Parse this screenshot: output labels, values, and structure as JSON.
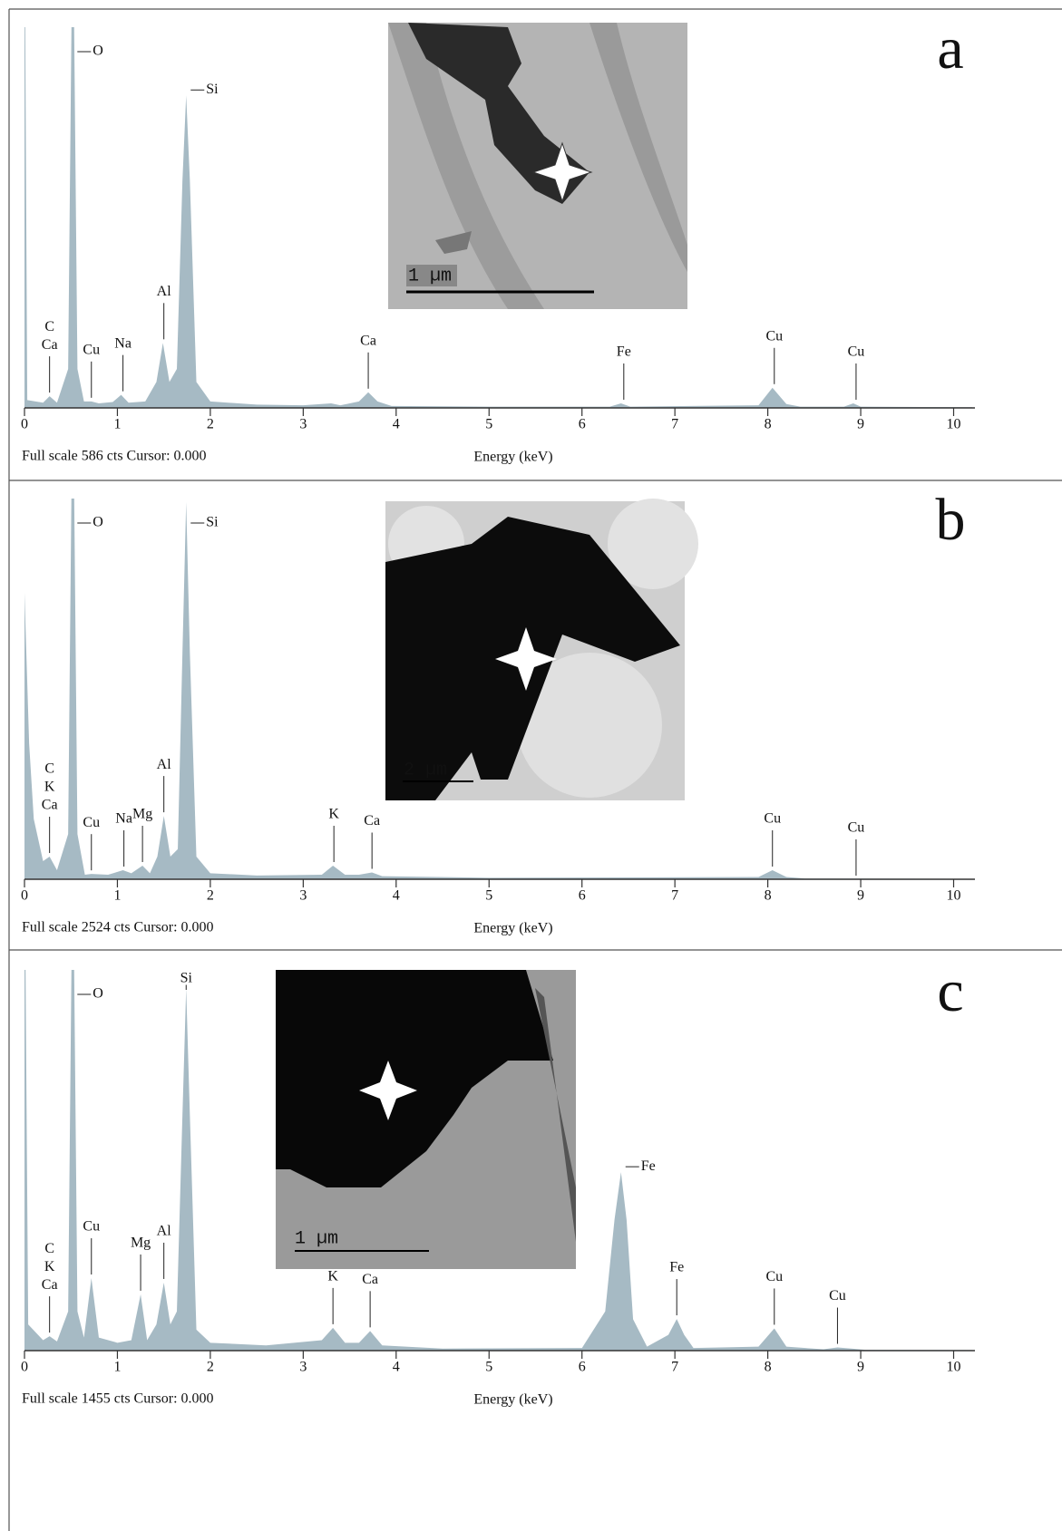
{
  "chart_data": [
    {
      "type": "spectrum",
      "panel_label": "a",
      "footer": "Full scale 586 cts Cursor: 0.000",
      "x_label": "Energy (keV)",
      "xlim": [
        0,
        10.2
      ],
      "ylim": [
        0,
        586
      ],
      "xticks": [
        0,
        1,
        2,
        3,
        4,
        5,
        6,
        7,
        8,
        9,
        10
      ],
      "color": "#a6bac4",
      "inset_scale": "1 µm",
      "x": [
        0,
        0.03,
        0.2,
        0.27,
        0.35,
        0.47,
        0.52,
        0.57,
        0.64,
        0.72,
        0.8,
        0.95,
        1.04,
        1.12,
        1.3,
        1.42,
        1.49,
        1.56,
        1.64,
        1.7,
        1.74,
        1.78,
        1.85,
        2.0,
        2.5,
        3.0,
        3.3,
        3.4,
        3.6,
        3.7,
        3.8,
        3.95,
        5.0,
        6.3,
        6.42,
        6.52,
        7.9,
        8.05,
        8.2,
        8.35,
        8.82,
        8.92,
        9.0,
        10.2
      ],
      "values": [
        800,
        12,
        8,
        18,
        8,
        60,
        800,
        60,
        10,
        10,
        7,
        9,
        20,
        8,
        10,
        40,
        100,
        40,
        60,
        350,
        481,
        350,
        40,
        10,
        5,
        4,
        7,
        4,
        10,
        24,
        10,
        3,
        2,
        2,
        7,
        2,
        4,
        31,
        6,
        2,
        2,
        7,
        2,
        1
      ],
      "peak_labels": [
        {
          "text": "C",
          "x": 0.27
        },
        {
          "text": "Ca",
          "x": 0.27
        },
        {
          "text": "O",
          "x": 0.52,
          "leader": "side"
        },
        {
          "text": "Cu",
          "x": 0.72
        },
        {
          "text": "Na",
          "x": 1.06
        },
        {
          "text": "Al",
          "x": 1.5
        },
        {
          "text": "Si",
          "x": 1.74,
          "leader": "side"
        },
        {
          "text": "Ca",
          "x": 3.7
        },
        {
          "text": "Fe",
          "x": 6.45
        },
        {
          "text": "Cu",
          "x": 8.07
        },
        {
          "text": "Cu",
          "x": 8.95
        }
      ]
    },
    {
      "type": "spectrum",
      "panel_label": "b",
      "footer": "Full scale 2524 cts Cursor: 0.000",
      "x_label": "Energy (keV)",
      "xlim": [
        0,
        10.2
      ],
      "ylim": [
        0,
        2524
      ],
      "xticks": [
        0,
        1,
        2,
        3,
        4,
        5,
        6,
        7,
        8,
        9,
        10
      ],
      "color": "#a6bac4",
      "inset_scale": "2 µm",
      "x": [
        0,
        0.05,
        0.1,
        0.2,
        0.27,
        0.35,
        0.47,
        0.52,
        0.57,
        0.65,
        0.72,
        0.9,
        1.06,
        1.15,
        1.27,
        1.35,
        1.43,
        1.5,
        1.57,
        1.65,
        1.7,
        1.74,
        1.78,
        1.85,
        2.0,
        2.5,
        3.2,
        3.32,
        3.45,
        3.6,
        3.74,
        3.85,
        5.0,
        7.9,
        8.05,
        8.2,
        8.4,
        10.2
      ],
      "values": [
        1900,
        900,
        400,
        120,
        150,
        60,
        300,
        3500,
        300,
        30,
        35,
        30,
        60,
        40,
        90,
        40,
        150,
        420,
        150,
        200,
        1500,
        2500,
        1500,
        150,
        40,
        25,
        30,
        90,
        30,
        30,
        45,
        20,
        10,
        15,
        60,
        15,
        5,
        3
      ],
      "peak_labels": [
        {
          "text": "C",
          "x": 0.27
        },
        {
          "text": "K",
          "x": 0.27
        },
        {
          "text": "Ca",
          "x": 0.27
        },
        {
          "text": "O",
          "x": 0.52,
          "leader": "side"
        },
        {
          "text": "Cu",
          "x": 0.72
        },
        {
          "text": "Na",
          "x": 1.07
        },
        {
          "text": "Mg",
          "x": 1.27
        },
        {
          "text": "Al",
          "x": 1.5
        },
        {
          "text": "Si",
          "x": 1.74,
          "leader": "side"
        },
        {
          "text": "K",
          "x": 3.33
        },
        {
          "text": "Ca",
          "x": 3.74
        },
        {
          "text": "Cu",
          "x": 8.05
        },
        {
          "text": "Cu",
          "x": 8.95
        }
      ]
    },
    {
      "type": "spectrum",
      "panel_label": "c",
      "footer": "Full scale 1455 cts Cursor: 0.000",
      "x_label": "Energy (keV)",
      "xlim": [
        0,
        10.2
      ],
      "ylim": [
        0,
        1455
      ],
      "xticks": [
        0,
        1,
        2,
        3,
        4,
        5,
        6,
        7,
        8,
        9,
        10
      ],
      "color": "#a6bac4",
      "inset_scale": "1 µm",
      "x": [
        0,
        0.04,
        0.2,
        0.27,
        0.35,
        0.47,
        0.52,
        0.57,
        0.64,
        0.72,
        0.8,
        1.0,
        1.15,
        1.25,
        1.32,
        1.42,
        1.5,
        1.57,
        1.64,
        1.7,
        1.74,
        1.78,
        1.85,
        2.0,
        2.6,
        3.2,
        3.32,
        3.45,
        3.6,
        3.72,
        3.85,
        4.5,
        6.0,
        6.25,
        6.35,
        6.42,
        6.48,
        6.55,
        6.7,
        6.93,
        7.02,
        7.1,
        7.2,
        7.9,
        8.07,
        8.2,
        8.6,
        8.75,
        8.9,
        9.05,
        10.2
      ],
      "values": [
        2000,
        100,
        40,
        55,
        35,
        150,
        2000,
        150,
        50,
        277,
        50,
        30,
        40,
        215,
        40,
        100,
        260,
        100,
        150,
        900,
        1384,
        900,
        80,
        30,
        20,
        40,
        87,
        30,
        30,
        75,
        20,
        8,
        10,
        150,
        500,
        682,
        500,
        120,
        15,
        60,
        121,
        60,
        10,
        15,
        85,
        15,
        5,
        12,
        8,
        3,
        2
      ],
      "peak_labels": [
        {
          "text": "C",
          "x": 0.27
        },
        {
          "text": "K",
          "x": 0.27
        },
        {
          "text": "Ca",
          "x": 0.27
        },
        {
          "text": "O",
          "x": 0.52,
          "leader": "side"
        },
        {
          "text": "Cu",
          "x": 0.72
        },
        {
          "text": "Mg",
          "x": 1.25
        },
        {
          "text": "Al",
          "x": 1.5
        },
        {
          "text": "Si",
          "x": 1.74
        },
        {
          "text": "K",
          "x": 3.32
        },
        {
          "text": "Ca",
          "x": 3.72
        },
        {
          "text": "Fe",
          "x": 6.42,
          "leader": "side"
        },
        {
          "text": "Fe",
          "x": 7.02
        },
        {
          "text": "Cu",
          "x": 8.07
        },
        {
          "text": "Cu",
          "x": 8.75
        }
      ]
    }
  ]
}
